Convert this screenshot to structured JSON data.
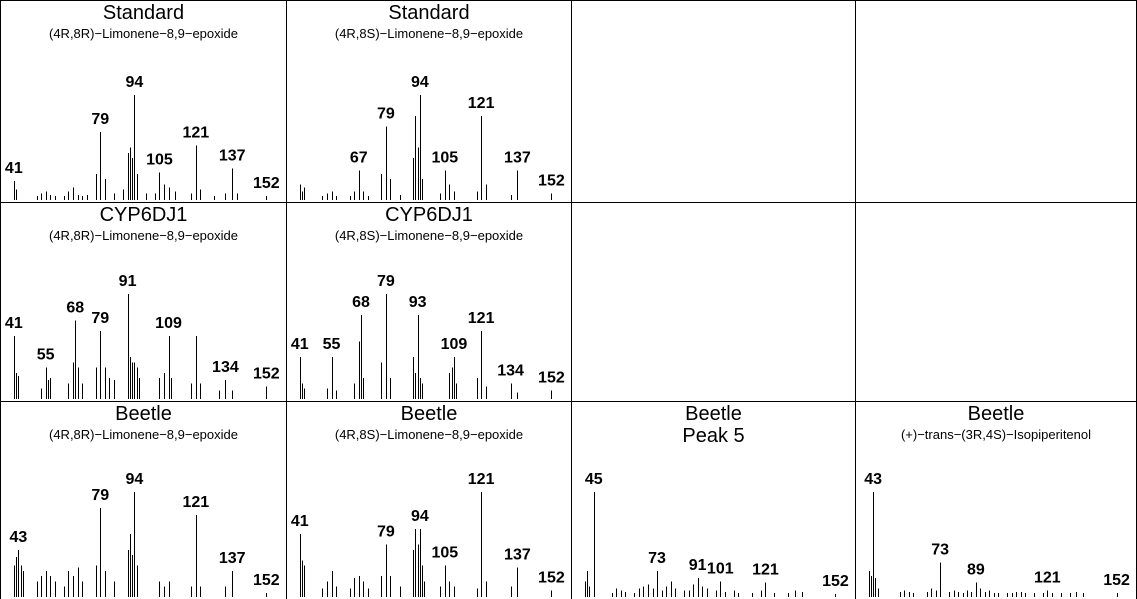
{
  "colors": {
    "stick": "#000000",
    "frame": "#000000",
    "background": "#ffffff"
  },
  "chart_data": [
    {
      "type": "bar",
      "title": "Standard",
      "subtitle": "(4R,8R)−Limonene−8,9−epoxide",
      "x": [
        41,
        42,
        51,
        53,
        55,
        57,
        59,
        63,
        65,
        67,
        69,
        71,
        73,
        77,
        79,
        81,
        85,
        89,
        91,
        92,
        93,
        94,
        95,
        99,
        103,
        105,
        107,
        109,
        112,
        119,
        121,
        123,
        129,
        134,
        137,
        139,
        152
      ],
      "values": [
        18,
        10,
        4,
        6,
        8,
        5,
        4,
        4,
        8,
        12,
        5,
        4,
        5,
        25,
        65,
        20,
        6,
        10,
        45,
        50,
        40,
        100,
        25,
        6,
        6,
        26,
        15,
        12,
        8,
        6,
        52,
        10,
        4,
        6,
        30,
        6,
        4
      ],
      "labels": [
        "41",
        "79",
        "94",
        "105",
        "121",
        "137",
        "152"
      ],
      "label_x": [
        41,
        79,
        94,
        105,
        121,
        137,
        152
      ],
      "xlim": [
        38,
        158
      ],
      "ylim": [
        0,
        100
      ]
    },
    {
      "type": "bar",
      "title": "Standard",
      "subtitle": "(4R,8S)−Limonene−8,9−epoxide",
      "x": [
        41,
        42,
        43,
        51,
        53,
        55,
        57,
        63,
        65,
        67,
        69,
        71,
        77,
        79,
        81,
        85,
        91,
        92,
        93,
        94,
        95,
        103,
        105,
        107,
        109,
        119,
        121,
        123,
        134,
        137,
        152
      ],
      "values": [
        15,
        8,
        12,
        4,
        6,
        8,
        4,
        4,
        8,
        28,
        8,
        4,
        25,
        70,
        20,
        5,
        40,
        80,
        50,
        100,
        20,
        6,
        28,
        15,
        8,
        8,
        80,
        15,
        5,
        28,
        6
      ],
      "labels": [
        "67",
        "79",
        "94",
        "105",
        "121",
        "137",
        "152"
      ],
      "label_x": [
        67,
        79,
        94,
        105,
        121,
        137,
        152
      ],
      "xlim": [
        38,
        158
      ],
      "ylim": [
        0,
        100
      ]
    },
    {
      "type": "bar",
      "title": "CYP6DJ1",
      "subtitle": "(4R,8R)−Limonene−8,9−epoxide",
      "x": [
        41,
        42,
        43,
        53,
        55,
        56,
        57,
        65,
        67,
        68,
        69,
        71,
        77,
        79,
        81,
        83,
        85,
        91,
        92,
        93,
        94,
        95,
        96,
        105,
        107,
        109,
        110,
        119,
        121,
        123,
        131,
        134,
        137,
        152
      ],
      "values": [
        60,
        25,
        22,
        10,
        30,
        18,
        20,
        15,
        35,
        75,
        30,
        15,
        30,
        65,
        30,
        20,
        18,
        100,
        40,
        35,
        35,
        30,
        20,
        20,
        25,
        60,
        20,
        15,
        60,
        15,
        8,
        18,
        8,
        12
      ],
      "labels": [
        "41",
        "55",
        "68",
        "79",
        "91",
        "109",
        "134",
        "152"
      ],
      "label_x": [
        41,
        55,
        68,
        79,
        91,
        109,
        134,
        152
      ],
      "xlim": [
        38,
        158
      ],
      "ylim": [
        0,
        100
      ]
    },
    {
      "type": "bar",
      "title": "CYP6DJ1",
      "subtitle": "(4R,8S)−Limonene−8,9−epoxide",
      "x": [
        41,
        42,
        43,
        53,
        55,
        57,
        65,
        67,
        68,
        69,
        77,
        79,
        81,
        91,
        92,
        93,
        94,
        95,
        107,
        108,
        109,
        110,
        119,
        121,
        123,
        134,
        137,
        152
      ],
      "values": [
        40,
        15,
        10,
        10,
        40,
        8,
        15,
        55,
        80,
        20,
        35,
        100,
        20,
        40,
        25,
        80,
        20,
        15,
        25,
        30,
        40,
        15,
        20,
        65,
        12,
        15,
        6,
        8
      ],
      "labels": [
        "41",
        "55",
        "68",
        "79",
        "93",
        "109",
        "121",
        "134",
        "152"
      ],
      "label_x": [
        41,
        55,
        68,
        79,
        93,
        109,
        121,
        134,
        152
      ],
      "xlim": [
        38,
        158
      ],
      "ylim": [
        0,
        100
      ]
    },
    {
      "type": "bar",
      "title": "Beetle",
      "subtitle": "(4R,8R)−Limonene−8,9−epoxide",
      "x": [
        41,
        42,
        43,
        44,
        45,
        51,
        53,
        55,
        57,
        59,
        63,
        65,
        67,
        69,
        71,
        77,
        79,
        81,
        85,
        91,
        92,
        93,
        94,
        95,
        105,
        107,
        109,
        119,
        121,
        123,
        134,
        137,
        152
      ],
      "values": [
        30,
        38,
        45,
        30,
        25,
        15,
        20,
        25,
        20,
        15,
        10,
        25,
        20,
        28,
        15,
        30,
        85,
        25,
        15,
        45,
        60,
        40,
        100,
        30,
        15,
        10,
        15,
        10,
        78,
        10,
        10,
        25,
        4
      ],
      "labels": [
        "43",
        "79",
        "94",
        "121",
        "137",
        "152"
      ],
      "label_x": [
        43,
        79,
        94,
        121,
        137,
        152
      ],
      "xlim": [
        38,
        158
      ],
      "ylim": [
        0,
        100
      ]
    },
    {
      "type": "bar",
      "title": "Beetle",
      "subtitle": "(4R,8S)−Limonene−8,9−epoxide",
      "x": [
        41,
        42,
        43,
        51,
        53,
        55,
        57,
        63,
        65,
        67,
        69,
        71,
        77,
        79,
        81,
        85,
        91,
        92,
        93,
        94,
        95,
        96,
        103,
        105,
        107,
        109,
        119,
        121,
        123,
        134,
        137,
        152
      ],
      "values": [
        60,
        35,
        30,
        8,
        15,
        25,
        10,
        8,
        18,
        20,
        15,
        8,
        20,
        50,
        20,
        10,
        45,
        65,
        50,
        65,
        30,
        15,
        10,
        30,
        15,
        10,
        8,
        100,
        15,
        10,
        28,
        6
      ],
      "labels": [
        "41",
        "79",
        "94",
        "105",
        "121",
        "137",
        "152"
      ],
      "label_x": [
        41,
        79,
        94,
        105,
        121,
        137,
        152
      ],
      "xlim": [
        38,
        158
      ],
      "ylim": [
        0,
        100
      ]
    },
    {
      "type": "bar",
      "title": "Beetle",
      "subtitle": "Peak 5",
      "x": [
        41,
        42,
        43,
        45,
        53,
        55,
        57,
        59,
        63,
        65,
        67,
        69,
        71,
        73,
        75,
        77,
        79,
        81,
        85,
        87,
        89,
        91,
        93,
        95,
        99,
        101,
        103,
        107,
        109,
        115,
        119,
        121,
        125,
        131,
        134,
        137,
        152
      ],
      "values": [
        15,
        25,
        10,
        100,
        4,
        8,
        6,
        5,
        4,
        8,
        10,
        12,
        8,
        25,
        6,
        10,
        15,
        8,
        6,
        6,
        12,
        18,
        10,
        8,
        6,
        15,
        5,
        6,
        4,
        4,
        6,
        14,
        4,
        4,
        6,
        5,
        3
      ],
      "labels": [
        "45",
        "73",
        "91",
        "101",
        "121",
        "152"
      ],
      "label_x": [
        45,
        73,
        91,
        101,
        121,
        152
      ],
      "xlim": [
        38,
        158
      ],
      "ylim": [
        0,
        100
      ]
    },
    {
      "type": "bar",
      "title": "Beetle",
      "subtitle": "(+)−trans−(3R,4S)−Isopiperitenol",
      "x": [
        41,
        42,
        43,
        44,
        45,
        55,
        57,
        59,
        61,
        67,
        69,
        71,
        73,
        77,
        79,
        81,
        83,
        85,
        87,
        89,
        91,
        93,
        95,
        97,
        99,
        103,
        105,
        107,
        109,
        111,
        115,
        119,
        121,
        123,
        127,
        131,
        134,
        137,
        152
      ],
      "values": [
        25,
        20,
        100,
        18,
        8,
        5,
        6,
        5,
        4,
        5,
        8,
        6,
        33,
        5,
        6,
        5,
        4,
        6,
        5,
        14,
        8,
        5,
        6,
        4,
        4,
        4,
        4,
        5,
        5,
        4,
        4,
        4,
        6,
        4,
        4,
        4,
        5,
        4,
        4
      ],
      "labels": [
        "43",
        "73",
        "89",
        "121",
        "152"
      ],
      "label_x": [
        43,
        73,
        89,
        121,
        152
      ],
      "xlim": [
        38,
        158
      ],
      "ylim": [
        0,
        100
      ]
    }
  ]
}
